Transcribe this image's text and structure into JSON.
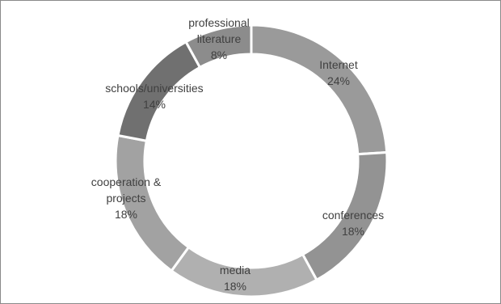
{
  "chart_data": {
    "type": "pie",
    "variant": "donut",
    "title": "",
    "legend": "none",
    "slices": [
      {
        "label_lines": [
          "Internet"
        ],
        "value_label": "24%",
        "value": 24,
        "color": "#9a9a9a"
      },
      {
        "label_lines": [
          "conferences"
        ],
        "value_label": "18%",
        "value": 18,
        "color": "#939393"
      },
      {
        "label_lines": [
          "media"
        ],
        "value_label": "18%",
        "value": 18,
        "color": "#b0b0b0"
      },
      {
        "label_lines": [
          "cooperation &",
          "projects"
        ],
        "value_label": "18%",
        "value": 18,
        "color": "#a2a2a2"
      },
      {
        "label_lines": [
          "schools/universities"
        ],
        "value_label": "14%",
        "value": 14,
        "color": "#707070"
      },
      {
        "label_lines": [
          "professional",
          "literature"
        ],
        "value_label": "8%",
        "value": 8,
        "color": "#8c8c8c"
      }
    ]
  }
}
